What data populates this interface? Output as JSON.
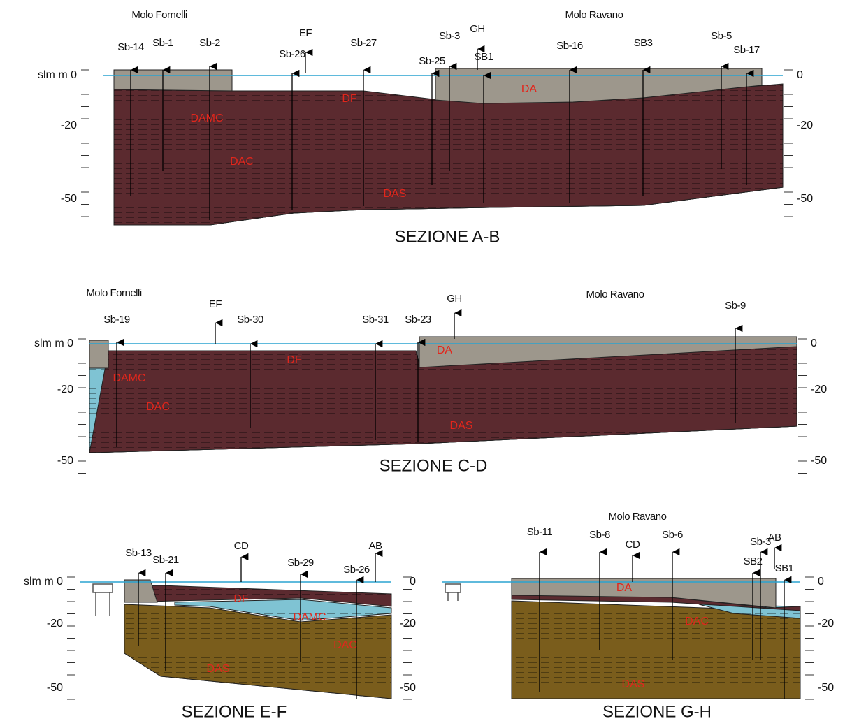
{
  "sections": [
    {
      "title": "SEZIONE A-B",
      "places": [
        "Molo Fornelli",
        "Molo Ravano"
      ],
      "boreholes": [
        "Sb-14",
        "Sb-1",
        "Sb-2",
        "Sb-26",
        "EF",
        "Sb-27",
        "Sb-25",
        "Sb-3",
        "GH",
        "SB1",
        "Sb-16",
        "SB3",
        "Sb-5",
        "Sb-17"
      ],
      "layers": [
        "DF",
        "DA",
        "DAMC",
        "DAC",
        "DAS"
      ],
      "left_axis": [
        "slm m 0",
        "-20",
        "-50"
      ],
      "right_axis": [
        "0",
        "-20",
        "-50"
      ]
    },
    {
      "title": "SEZIONE C-D",
      "places": [
        "Molo Fornelli",
        "Molo Ravano"
      ],
      "boreholes": [
        "Sb-19",
        "EF",
        "Sb-30",
        "Sb-31",
        "Sb-23",
        "GH",
        "Sb-9"
      ],
      "layers": [
        "DF",
        "DA",
        "DAMC",
        "DAC",
        "DAS"
      ],
      "left_axis": [
        "slm m 0",
        "-20",
        "-50"
      ],
      "right_axis": [
        "0",
        "-20",
        "-50"
      ]
    },
    {
      "title": "SEZIONE E-F",
      "places": [],
      "boreholes": [
        "Sb-13",
        "Sb-21",
        "CD",
        "Sb-29",
        "Sb-26",
        "AB"
      ],
      "layers": [
        "DF",
        "DAMC",
        "DAC",
        "DAS"
      ],
      "left_axis": [
        "slm m 0",
        "-20",
        "-50"
      ],
      "right_axis": [
        "0",
        "-20",
        "-50"
      ]
    },
    {
      "title": "SEZIONE G-H",
      "places": [
        "Molo Ravano"
      ],
      "boreholes": [
        "Sb-11",
        "Sb-8",
        "CD",
        "Sb-6",
        "Sb-3",
        "AB",
        "SB2",
        "SB1"
      ],
      "layers": [
        "DA",
        "DAC",
        "DAS"
      ],
      "right_axis": [
        "0",
        "-20",
        "-50"
      ]
    }
  ]
}
